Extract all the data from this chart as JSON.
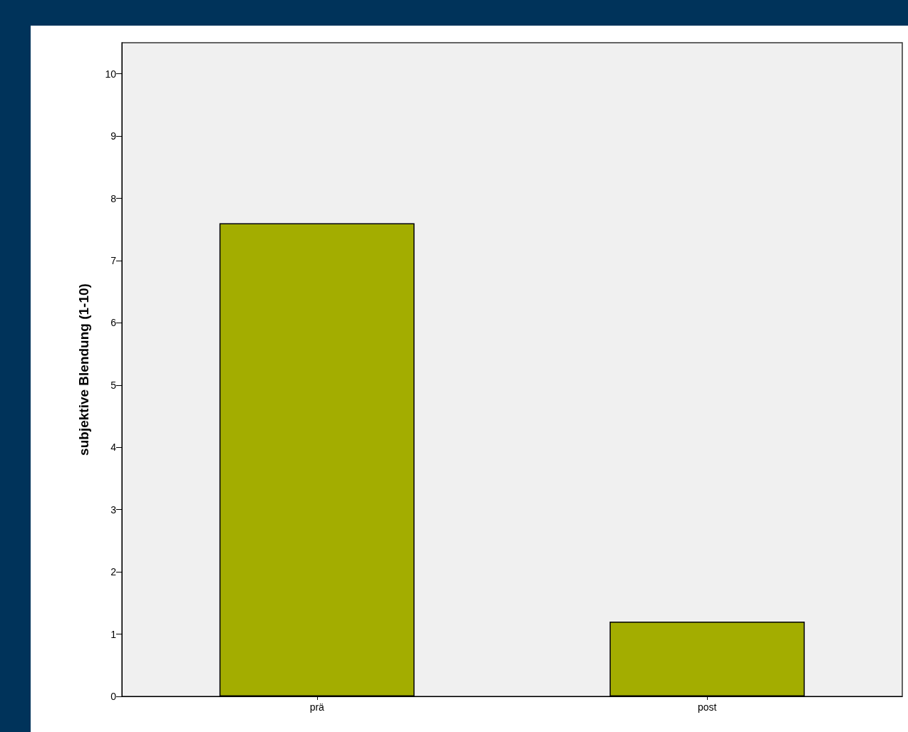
{
  "chart_data": {
    "type": "bar",
    "ylabel": "subjektive Blendung (1-10)",
    "categories": [
      "prä",
      "post"
    ],
    "values": [
      7.6,
      1.2
    ],
    "color": "#a3ad00",
    "ylim": [
      0,
      10.5
    ],
    "yticks": [
      0,
      1,
      2,
      3,
      4,
      5,
      6,
      7,
      8,
      9,
      10
    ]
  }
}
